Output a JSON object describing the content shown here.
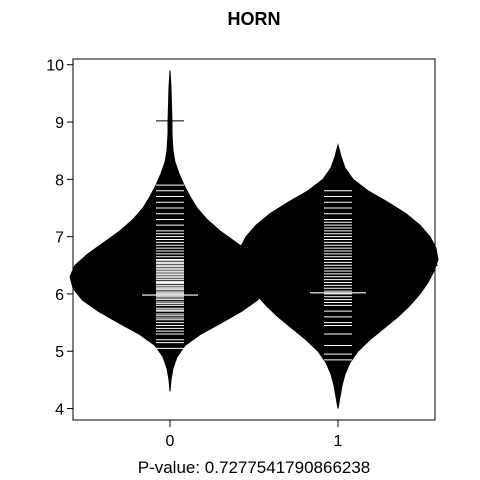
{
  "chart_data": {
    "type": "beanplot",
    "title": "HORN",
    "xlabel": "P-value: 0.7277541790866238",
    "ylabel": "",
    "categories": [
      "0",
      "1"
    ],
    "ylim": [
      3.8,
      10.1
    ],
    "yticks": [
      4,
      5,
      6,
      7,
      8,
      9,
      10
    ],
    "overall_mean": 6.5,
    "grid": false,
    "colors": {
      "bean": "#000000",
      "line": "#ffffff",
      "background": "#ffffff"
    },
    "beans": [
      {
        "category": "0",
        "mean": 5.98,
        "min": 4.3,
        "max": 9.9,
        "density": [
          [
            4.3,
            0
          ],
          [
            4.5,
            0.01
          ],
          [
            4.7,
            0.03
          ],
          [
            4.9,
            0.07
          ],
          [
            5.1,
            0.15
          ],
          [
            5.3,
            0.31
          ],
          [
            5.5,
            0.52
          ],
          [
            5.7,
            0.72
          ],
          [
            5.9,
            0.88
          ],
          [
            6.1,
            0.97
          ],
          [
            6.3,
            1.0
          ],
          [
            6.5,
            0.95
          ],
          [
            6.7,
            0.82
          ],
          [
            6.9,
            0.66
          ],
          [
            7.1,
            0.5
          ],
          [
            7.3,
            0.37
          ],
          [
            7.5,
            0.27
          ],
          [
            7.7,
            0.2
          ],
          [
            7.9,
            0.14
          ],
          [
            8.1,
            0.09
          ],
          [
            8.3,
            0.05
          ],
          [
            8.5,
            0.03
          ],
          [
            8.8,
            0.02
          ],
          [
            9.0,
            0.02
          ],
          [
            9.3,
            0.015
          ],
          [
            9.6,
            0.01
          ],
          [
            9.9,
            0
          ]
        ],
        "observations": [
          5.05,
          5.15,
          5.2,
          5.3,
          5.35,
          5.4,
          5.45,
          5.5,
          5.55,
          5.58,
          5.62,
          5.65,
          5.7,
          5.72,
          5.75,
          5.8,
          5.83,
          5.86,
          5.9,
          5.93,
          5.96,
          6.0,
          6.02,
          6.05,
          6.08,
          6.1,
          6.12,
          6.15,
          6.18,
          6.2,
          6.22,
          6.25,
          6.28,
          6.3,
          6.33,
          6.35,
          6.38,
          6.4,
          6.43,
          6.45,
          6.48,
          6.5,
          6.53,
          6.55,
          6.58,
          6.6,
          6.65,
          6.7,
          6.75,
          6.8,
          6.85,
          6.9,
          6.95,
          7.0,
          7.05,
          7.1,
          7.2,
          7.3,
          7.4,
          7.5,
          7.6,
          7.7,
          7.8,
          7.9,
          9.02
        ]
      },
      {
        "category": "1",
        "mean": 6.02,
        "min": 4.0,
        "max": 8.6,
        "density": [
          [
            4.0,
            0
          ],
          [
            4.2,
            0.02
          ],
          [
            4.4,
            0.04
          ],
          [
            4.6,
            0.07
          ],
          [
            4.8,
            0.12
          ],
          [
            5.0,
            0.2
          ],
          [
            5.2,
            0.32
          ],
          [
            5.4,
            0.46
          ],
          [
            5.6,
            0.6
          ],
          [
            5.8,
            0.72
          ],
          [
            6.0,
            0.82
          ],
          [
            6.2,
            0.9
          ],
          [
            6.4,
            0.96
          ],
          [
            6.6,
            1.0
          ],
          [
            6.8,
            0.98
          ],
          [
            7.0,
            0.92
          ],
          [
            7.2,
            0.82
          ],
          [
            7.4,
            0.68
          ],
          [
            7.6,
            0.5
          ],
          [
            7.8,
            0.3
          ],
          [
            8.0,
            0.15
          ],
          [
            8.2,
            0.07
          ],
          [
            8.4,
            0.03
          ],
          [
            8.6,
            0
          ]
        ],
        "observations": [
          4.85,
          4.95,
          5.1,
          5.3,
          5.45,
          5.5,
          5.6,
          5.7,
          5.8,
          5.85,
          5.9,
          5.95,
          6.0,
          6.05,
          6.1,
          6.15,
          6.2,
          6.25,
          6.3,
          6.35,
          6.4,
          6.45,
          6.5,
          6.55,
          6.6,
          6.65,
          6.7,
          6.75,
          6.8,
          6.85,
          6.9,
          6.95,
          7.0,
          7.05,
          7.1,
          7.15,
          7.2,
          7.25,
          7.3,
          7.4,
          7.5,
          7.6,
          7.7,
          7.8
        ]
      }
    ]
  }
}
